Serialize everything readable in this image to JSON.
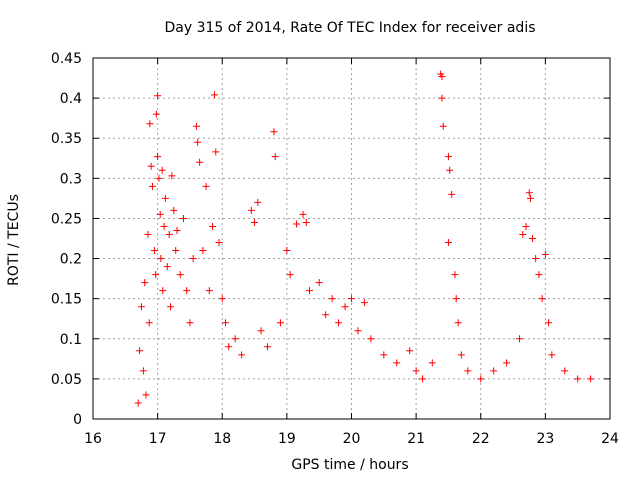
{
  "chart_data": {
    "type": "scatter",
    "title": "Day 315 of 2014, Rate Of TEC Index for receiver adis",
    "xlabel": "GPS time / hours",
    "ylabel": "ROTI / TECUs",
    "xlim": [
      16,
      24
    ],
    "ylim": [
      0,
      0.45
    ],
    "xticks": [
      "16",
      "17",
      "18",
      "19",
      "20",
      "21",
      "22",
      "23",
      "24"
    ],
    "yticks": [
      "0",
      "0.05",
      "0.1",
      "0.15",
      "0.2",
      "0.25",
      "0.3",
      "0.35",
      "0.4",
      "0.45"
    ],
    "grid": true,
    "marker": "+",
    "series_color": "#ff0000",
    "series": [
      {
        "name": "ROTI",
        "points": [
          [
            16.7,
            0.02
          ],
          [
            16.72,
            0.085
          ],
          [
            16.75,
            0.14
          ],
          [
            16.78,
            0.06
          ],
          [
            16.8,
            0.17
          ],
          [
            16.82,
            0.03
          ],
          [
            16.85,
            0.23
          ],
          [
            16.87,
            0.12
          ],
          [
            16.88,
            0.368
          ],
          [
            16.9,
            0.315
          ],
          [
            16.92,
            0.29
          ],
          [
            16.95,
            0.21
          ],
          [
            16.97,
            0.18
          ],
          [
            16.98,
            0.38
          ],
          [
            17.0,
            0.403
          ],
          [
            17.0,
            0.327
          ],
          [
            17.02,
            0.3
          ],
          [
            17.04,
            0.255
          ],
          [
            17.05,
            0.2
          ],
          [
            17.07,
            0.31
          ],
          [
            17.08,
            0.16
          ],
          [
            17.1,
            0.24
          ],
          [
            17.12,
            0.275
          ],
          [
            17.15,
            0.19
          ],
          [
            17.18,
            0.23
          ],
          [
            17.2,
            0.14
          ],
          [
            17.22,
            0.303
          ],
          [
            17.25,
            0.26
          ],
          [
            17.28,
            0.21
          ],
          [
            17.3,
            0.235
          ],
          [
            17.35,
            0.18
          ],
          [
            17.4,
            0.25
          ],
          [
            17.45,
            0.16
          ],
          [
            17.5,
            0.12
          ],
          [
            17.55,
            0.2
          ],
          [
            17.6,
            0.365
          ],
          [
            17.62,
            0.345
          ],
          [
            17.65,
            0.32
          ],
          [
            17.7,
            0.21
          ],
          [
            17.75,
            0.29
          ],
          [
            17.8,
            0.16
          ],
          [
            17.85,
            0.24
          ],
          [
            17.88,
            0.404
          ],
          [
            17.9,
            0.333
          ],
          [
            17.95,
            0.22
          ],
          [
            18.0,
            0.15
          ],
          [
            18.05,
            0.12
          ],
          [
            18.1,
            0.09
          ],
          [
            18.2,
            0.1
          ],
          [
            18.3,
            0.08
          ],
          [
            18.45,
            0.26
          ],
          [
            18.5,
            0.245
          ],
          [
            18.55,
            0.27
          ],
          [
            18.6,
            0.11
          ],
          [
            18.7,
            0.09
          ],
          [
            18.8,
            0.358
          ],
          [
            18.82,
            0.327
          ],
          [
            18.9,
            0.12
          ],
          [
            19.0,
            0.21
          ],
          [
            19.05,
            0.18
          ],
          [
            19.15,
            0.243
          ],
          [
            19.25,
            0.255
          ],
          [
            19.3,
            0.245
          ],
          [
            19.35,
            0.16
          ],
          [
            19.5,
            0.17
          ],
          [
            19.6,
            0.13
          ],
          [
            19.7,
            0.15
          ],
          [
            19.8,
            0.12
          ],
          [
            19.9,
            0.14
          ],
          [
            20.0,
            0.15
          ],
          [
            20.1,
            0.11
          ],
          [
            20.2,
            0.145
          ],
          [
            20.3,
            0.1
          ],
          [
            20.5,
            0.08
          ],
          [
            20.7,
            0.07
          ],
          [
            20.9,
            0.085
          ],
          [
            21.0,
            0.06
          ],
          [
            21.1,
            0.05
          ],
          [
            21.25,
            0.07
          ],
          [
            21.38,
            0.43
          ],
          [
            21.4,
            0.427
          ],
          [
            21.4,
            0.4
          ],
          [
            21.42,
            0.365
          ],
          [
            21.5,
            0.327
          ],
          [
            21.52,
            0.31
          ],
          [
            21.55,
            0.28
          ],
          [
            21.5,
            0.22
          ],
          [
            21.6,
            0.18
          ],
          [
            21.62,
            0.15
          ],
          [
            21.65,
            0.12
          ],
          [
            21.7,
            0.08
          ],
          [
            21.8,
            0.06
          ],
          [
            22.0,
            0.05
          ],
          [
            22.2,
            0.06
          ],
          [
            22.4,
            0.07
          ],
          [
            22.6,
            0.1
          ],
          [
            22.65,
            0.23
          ],
          [
            22.7,
            0.24
          ],
          [
            22.75,
            0.282
          ],
          [
            22.77,
            0.275
          ],
          [
            22.8,
            0.225
          ],
          [
            22.85,
            0.2
          ],
          [
            22.9,
            0.18
          ],
          [
            22.95,
            0.15
          ],
          [
            23.0,
            0.205
          ],
          [
            23.05,
            0.12
          ],
          [
            23.1,
            0.08
          ],
          [
            23.3,
            0.06
          ],
          [
            23.5,
            0.05
          ],
          [
            23.7,
            0.05
          ]
        ]
      }
    ]
  }
}
